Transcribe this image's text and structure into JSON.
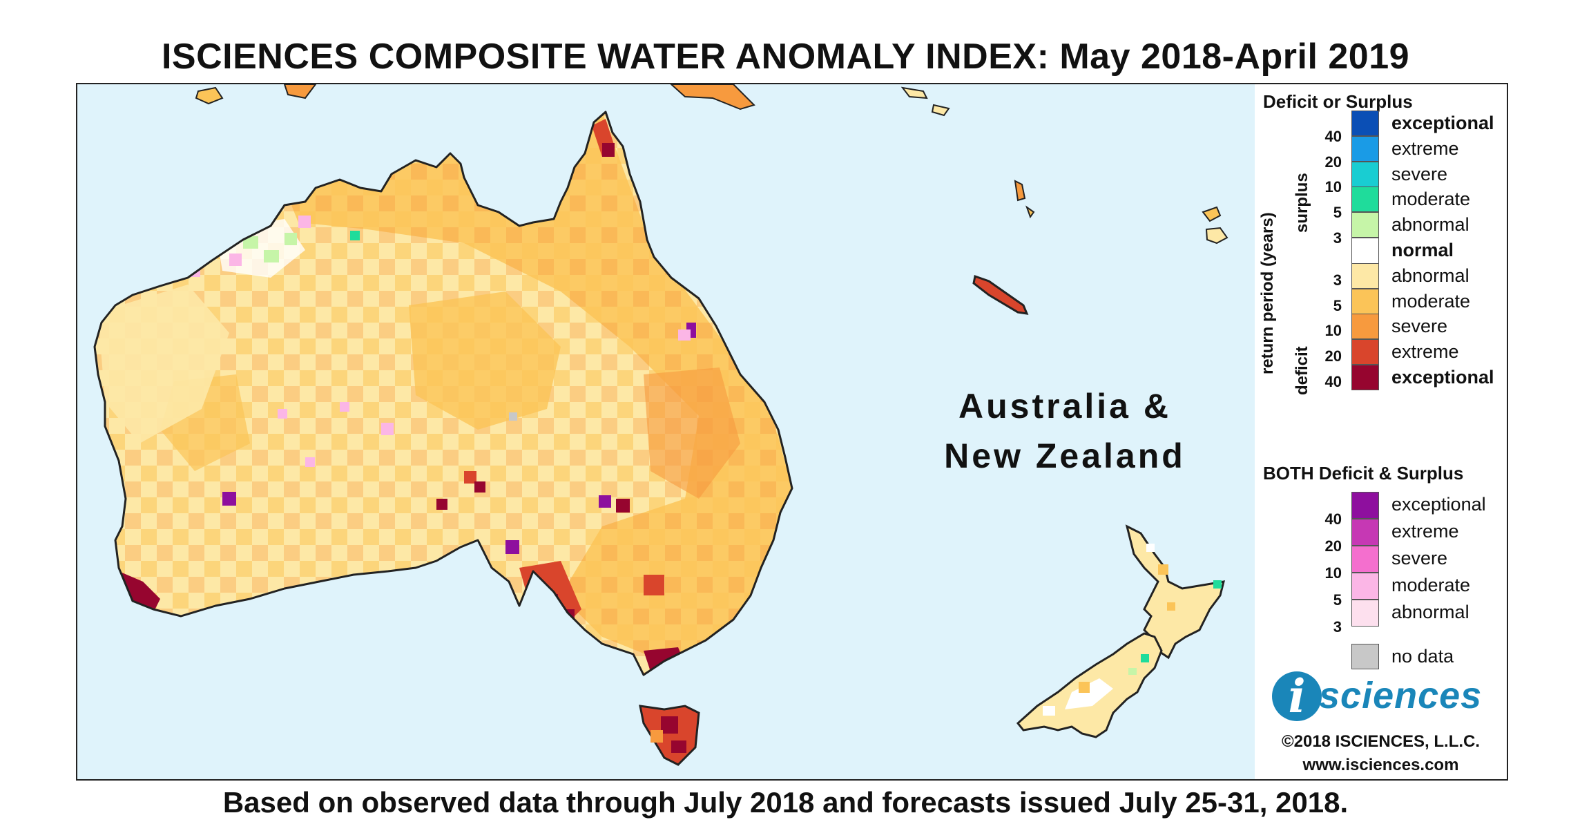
{
  "title": "ISCIENCES COMPOSITE WATER ANOMALY INDEX: May 2018-April 2019",
  "subtitle": "Based on observed data through July 2018 and forecasts issued July 25-31, 2018.",
  "region_label_line1": "Australia &",
  "region_label_line2": "New Zealand",
  "legend": {
    "heading1": "Deficit or Surplus",
    "axis_label": "return period (years)",
    "surplus_label": "surplus",
    "deficit_label": "deficit",
    "surplus_ticks": [
      "40",
      "20",
      "10",
      "5",
      "3"
    ],
    "deficit_ticks": [
      "3",
      "5",
      "10",
      "20",
      "40"
    ],
    "classes": [
      {
        "label": "exceptional",
        "color": "#0b4fb5",
        "bold": true
      },
      {
        "label": "extreme",
        "color": "#1a9be6",
        "bold": false
      },
      {
        "label": "severe",
        "color": "#19cdd2",
        "bold": false
      },
      {
        "label": "moderate",
        "color": "#1fdc9b",
        "bold": false
      },
      {
        "label": "abnormal",
        "color": "#c6f5a8",
        "bold": false
      },
      {
        "label": "normal",
        "color": "#ffffff",
        "bold": true
      },
      {
        "label": "abnormal",
        "color": "#fde8a6",
        "bold": false
      },
      {
        "label": "moderate",
        "color": "#fbc458",
        "bold": false
      },
      {
        "label": "severe",
        "color": "#f79a3e",
        "bold": false
      },
      {
        "label": "extreme",
        "color": "#d9452c",
        "bold": false
      },
      {
        "label": "exceptional",
        "color": "#96052f",
        "bold": true
      }
    ],
    "heading2": "BOTH Deficit & Surplus",
    "both_ticks": [
      "40",
      "20",
      "10",
      "5",
      "3"
    ],
    "both_classes": [
      {
        "label": "exceptional",
        "color": "#8e0f9e"
      },
      {
        "label": "extreme",
        "color": "#c638b4"
      },
      {
        "label": "severe",
        "color": "#f46fce"
      },
      {
        "label": "moderate",
        "color": "#fbb6e6"
      },
      {
        "label": "abnormal",
        "color": "#fde0ee"
      }
    ],
    "no_data_label": "no data",
    "no_data_color": "#c8c8c8"
  },
  "logo": {
    "mark": "i",
    "text": "sciences"
  },
  "copyright": "©2018 ISCIENCES, L.L.C.",
  "website": "www.isciences.com"
}
